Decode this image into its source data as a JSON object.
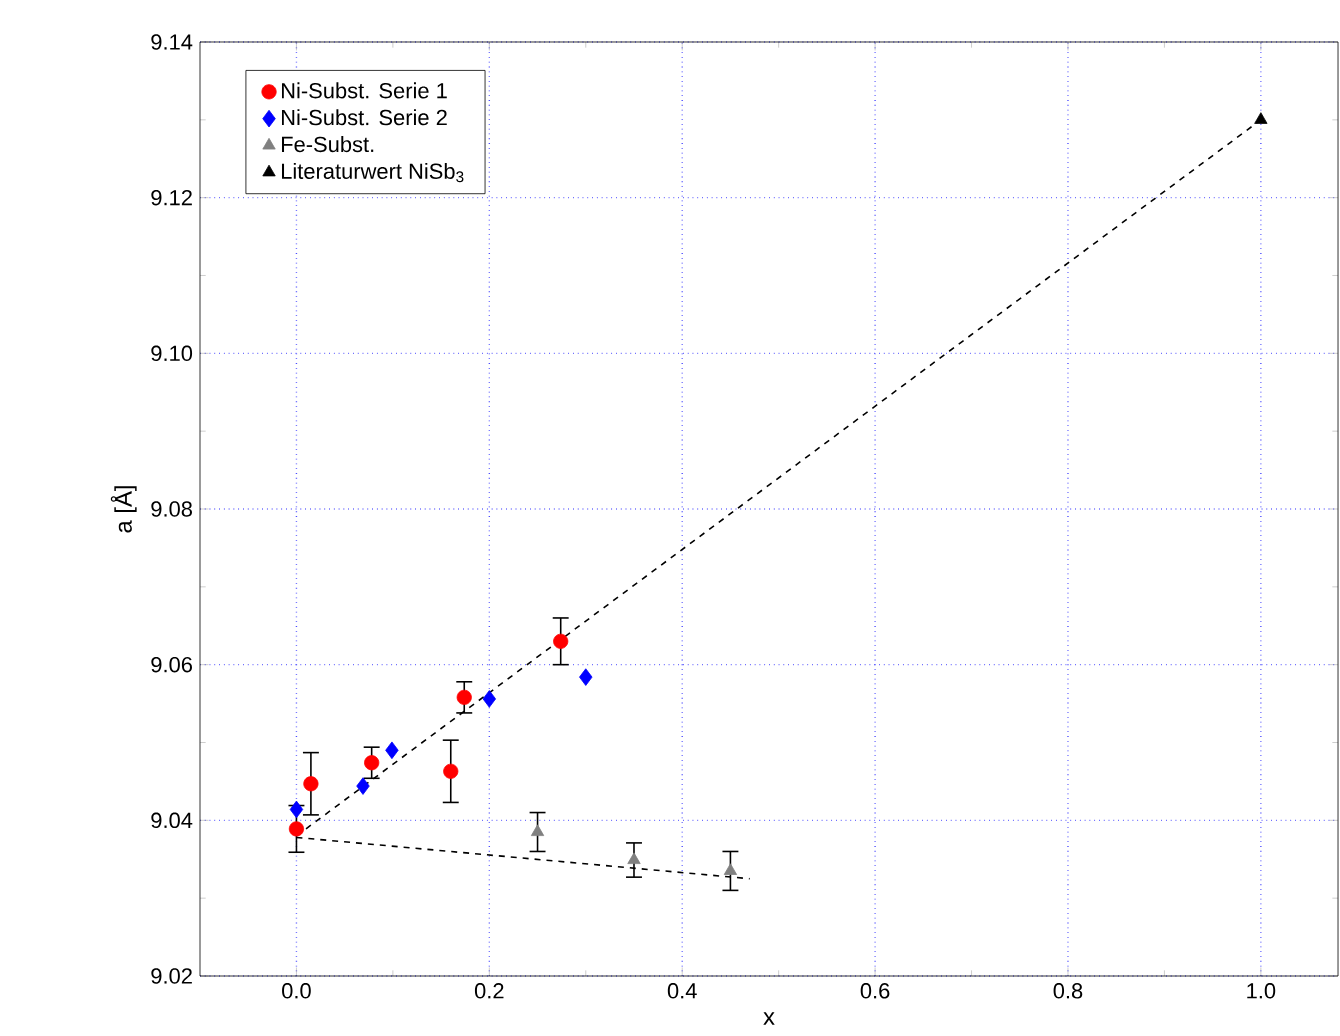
{
  "chart_data": {
    "type": "scatter",
    "xlabel": "x",
    "ylabel": "a [Å]",
    "xlim": [
      -0.1,
      1.08
    ],
    "ylim": [
      9.02,
      9.14
    ],
    "xticks": [
      {
        "value": 0,
        "label": "0.0"
      },
      0.2,
      0.4,
      0.6,
      0.8,
      {
        "value": 1,
        "label": "1.0"
      }
    ],
    "yticks": [
      {
        "value": 9.02,
        "label": "9.02"
      },
      {
        "value": 9.04,
        "label": "9.04"
      },
      {
        "value": 9.06,
        "label": "9.06"
      },
      {
        "value": 9.08,
        "label": "9.08"
      },
      {
        "value": 9.1,
        "label": "9.10"
      },
      {
        "value": 9.12,
        "label": "9.12"
      },
      {
        "value": 9.14,
        "label": "9.14"
      }
    ],
    "grid": true,
    "legend": "top left",
    "series": [
      {
        "type": "line",
        "color": "#000000",
        "line_style": "dashed",
        "marker": "none",
        "x": [
          0,
          1.0
        ],
        "values": [
          9.038,
          9.13
        ]
      },
      {
        "type": "line",
        "color": "#000000",
        "line_style": "dashed",
        "marker": "none",
        "x": [
          0,
          0.47
        ],
        "values": [
          9.0378,
          9.0325
        ]
      },
      {
        "name": "Ni-Subst. Serie 1",
        "color": "#ff0000",
        "marker": "circle",
        "x": [
          0,
          0.015,
          0.078,
          0.16,
          0.174,
          0.274
        ],
        "values": [
          9.0389,
          9.0447,
          9.0474,
          9.0463,
          9.0558,
          9.063
        ],
        "errors": [
          0.003,
          0.004,
          0.002,
          0.004,
          0.002,
          0.003
        ]
      },
      {
        "name": "Ni-Subst. Serie 2",
        "color": "#0000ff",
        "marker": "diamond",
        "x": [
          0,
          0.069,
          0.099,
          0.2,
          0.3
        ],
        "values": [
          9.0414,
          9.0444,
          9.049,
          9.0556,
          9.0584
        ]
      },
      {
        "name": "Fe-Subst.",
        "color": "#808080",
        "marker": "triangle",
        "x": [
          0.25,
          0.35,
          0.45
        ],
        "values": [
          9.0385,
          9.0349,
          9.0335
        ],
        "errors": [
          0.0025,
          0.0022,
          0.0025
        ]
      },
      {
        "name": "Literaturwert NiSb$_{3}$",
        "color": "#000000",
        "marker": "triangle",
        "x": [
          1.0
        ],
        "values": [
          9.13
        ]
      }
    ]
  }
}
